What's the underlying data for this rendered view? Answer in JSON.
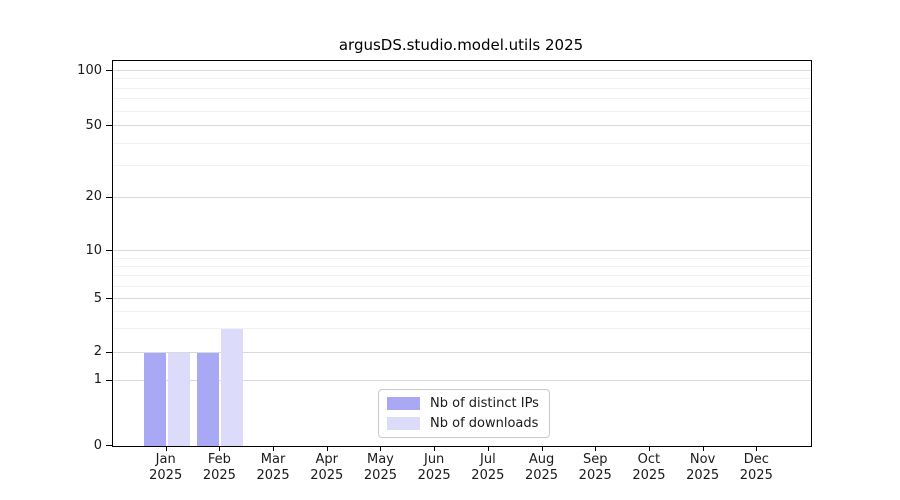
{
  "chart_data": {
    "type": "bar",
    "title": "argusDS.studio.model.utils 2025",
    "categories": [
      "Jan",
      "Feb",
      "Mar",
      "Apr",
      "May",
      "Jun",
      "Jul",
      "Aug",
      "Sep",
      "Oct",
      "Nov",
      "Dec"
    ],
    "category_year": "2025",
    "series": [
      {
        "name": "Nb of distinct IPs",
        "color": "#a8a8f4",
        "values": [
          2,
          2,
          0,
          0,
          0,
          0,
          0,
          0,
          0,
          0,
          0,
          0
        ]
      },
      {
        "name": "Nb of downloads",
        "color": "#dcdcfa",
        "values": [
          2,
          3,
          0,
          0,
          0,
          0,
          0,
          0,
          0,
          0,
          0,
          0
        ]
      }
    ],
    "yscale": "symlog",
    "ylim": [
      0,
      113
    ],
    "yticks": [
      0,
      1,
      2,
      5,
      10,
      20,
      50,
      100
    ],
    "minor_yticks": [
      3,
      4,
      6,
      7,
      8,
      9,
      30,
      40,
      60,
      70,
      80,
      90
    ],
    "grid": {
      "major_color": "#d9d9d9",
      "minor_color": "#f1f1f1"
    },
    "legend_position": "lower-center-inside",
    "axis_color": "#000000",
    "text_color": "#1a1a1a"
  }
}
